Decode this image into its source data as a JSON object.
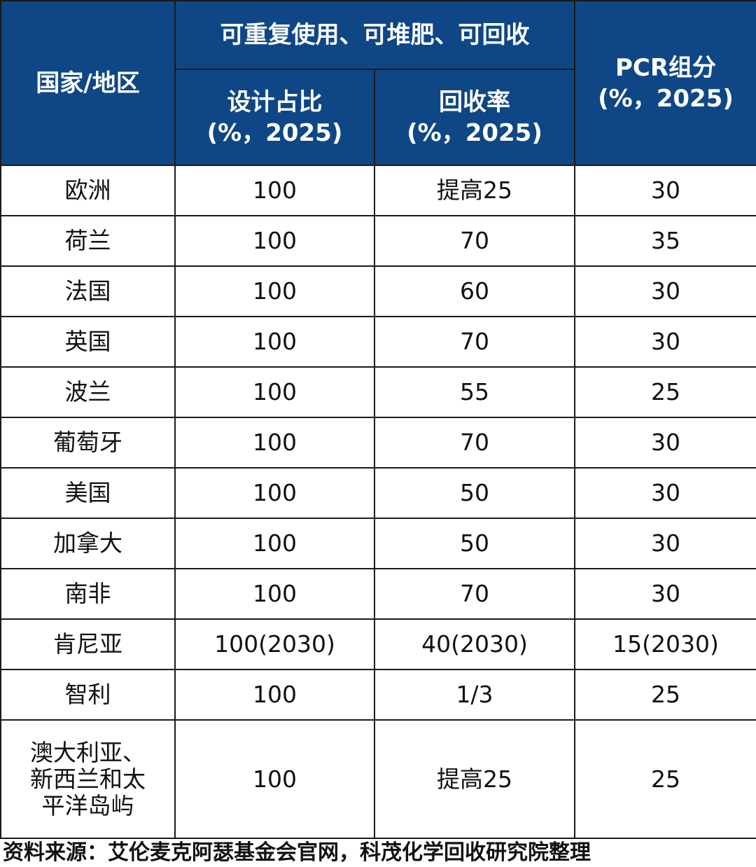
{
  "table": {
    "header": {
      "country": "国家/地区",
      "group": "可重复使用、可堆肥、可回收",
      "design": [
        "设计占比",
        "(%，2025)"
      ],
      "recycle": [
        "回收率",
        "(%，2025)"
      ],
      "pcr": [
        "PCR组分",
        "(%，2025)"
      ]
    },
    "rows": [
      [
        "欧洲",
        "100",
        "提高25",
        "30"
      ],
      [
        "荷兰",
        "100",
        "70",
        "35"
      ],
      [
        "法国",
        "100",
        "60",
        "30"
      ],
      [
        "英国",
        "100",
        "70",
        "30"
      ],
      [
        "波兰",
        "100",
        "55",
        "25"
      ],
      [
        "葡萄牙",
        "100",
        "70",
        "30"
      ],
      [
        "美国",
        "100",
        "50",
        "30"
      ],
      [
        "加拿大",
        "100",
        "50",
        "30"
      ],
      [
        "南非",
        "100",
        "70",
        "30"
      ],
      [
        "肯尼亚",
        "100(2030)",
        "40(2030)",
        "15(2030)"
      ],
      [
        "智利",
        "100",
        "1/3",
        "25"
      ],
      [
        "澳大利亚、新西兰和太平洋岛屿",
        "100",
        "提高25",
        "25"
      ]
    ]
  },
  "source": "资料来源：艾伦麦克阿瑟基金会官网，科茂化学回收研究院整理"
}
